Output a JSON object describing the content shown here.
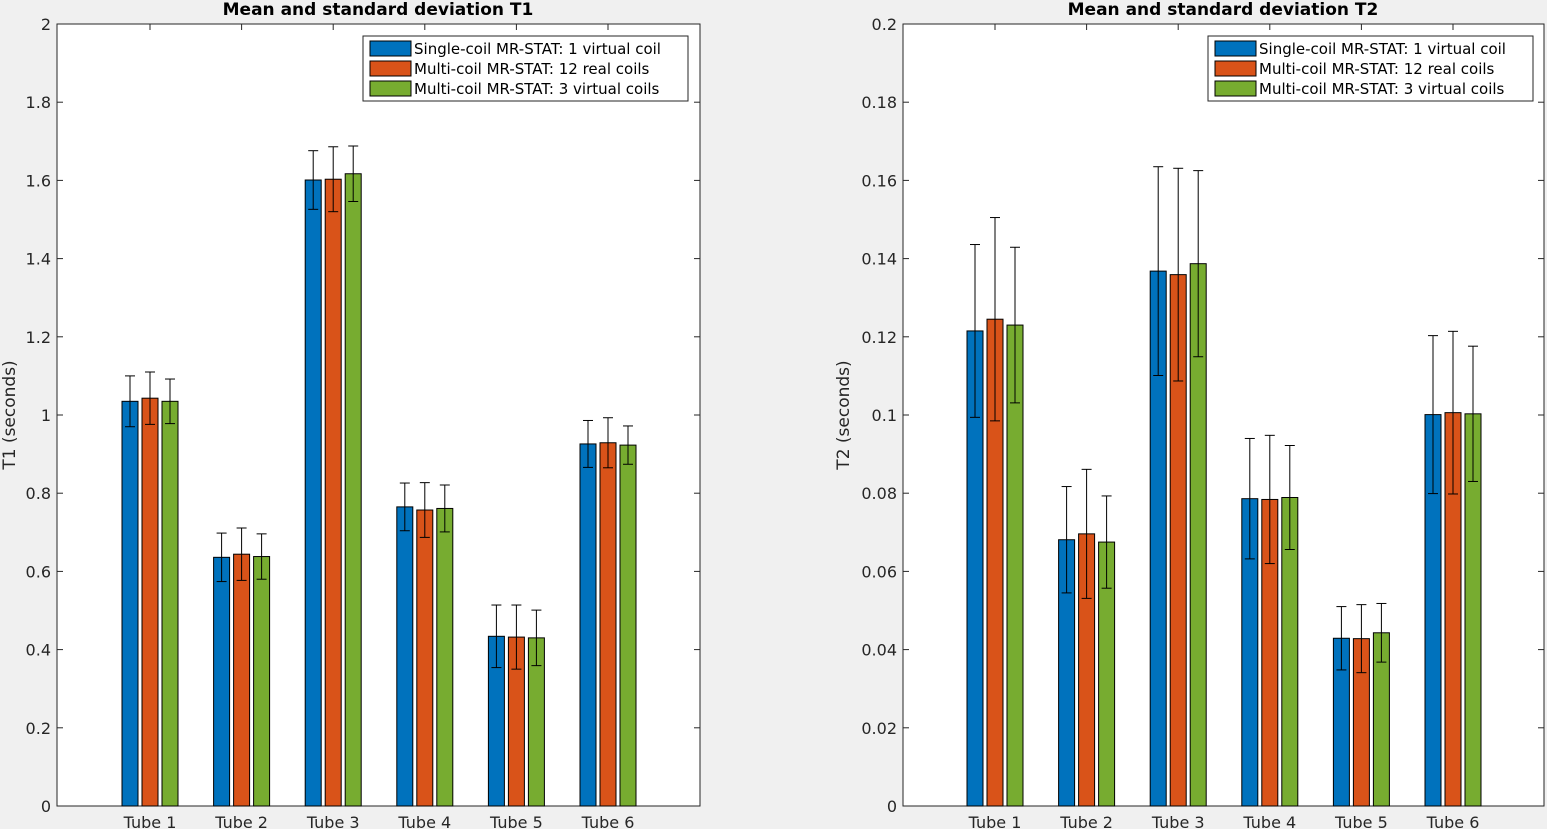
{
  "chart_data": [
    {
      "type": "bar",
      "title": "Mean and standard deviation T1",
      "xlabel": "",
      "ylabel": "T1 (seconds)",
      "ylim": [
        0,
        2
      ],
      "yticks": [
        0,
        0.2,
        0.4,
        0.6,
        0.8,
        1,
        1.2,
        1.4,
        1.6,
        1.8,
        2
      ],
      "ytick_labels": [
        "0",
        "0.2",
        "0.4",
        "0.6",
        "0.8",
        "1",
        "1.2",
        "1.4",
        "1.6",
        "1.8",
        "2"
      ],
      "categories": [
        "Tube 1",
        "Tube 2",
        "Tube 3",
        "Tube 4",
        "Tube 5",
        "Tube 6"
      ],
      "legend_position": "top-right",
      "grid": false,
      "series": [
        {
          "name": "Single-coil MR-STAT: 1 virtual coil",
          "color": "#0072bd",
          "values": [
            1.035,
            0.636,
            1.601,
            0.765,
            0.434,
            0.926
          ],
          "errors": [
            0.065,
            0.062,
            0.075,
            0.061,
            0.08,
            0.06
          ]
        },
        {
          "name": "Multi-coil MR-STAT: 12 real coils",
          "color": "#d95319",
          "values": [
            1.043,
            0.644,
            1.603,
            0.757,
            0.432,
            0.929
          ],
          "errors": [
            0.067,
            0.067,
            0.083,
            0.07,
            0.082,
            0.064
          ]
        },
        {
          "name": "Multi-coil MR-STAT: 3 virtual coils",
          "color": "#77ac30",
          "values": [
            1.035,
            0.638,
            1.617,
            0.761,
            0.43,
            0.923
          ],
          "errors": [
            0.057,
            0.058,
            0.071,
            0.06,
            0.071,
            0.049
          ]
        }
      ]
    },
    {
      "type": "bar",
      "title": "Mean and standard deviation T2",
      "xlabel": "",
      "ylabel": "T2 (seconds)",
      "ylim": [
        0,
        0.2
      ],
      "yticks": [
        0,
        0.02,
        0.04,
        0.06,
        0.08,
        0.1,
        0.12,
        0.14,
        0.16,
        0.18,
        0.2
      ],
      "ytick_labels": [
        "0",
        "0.02",
        "0.04",
        "0.06",
        "0.08",
        "0.1",
        "0.12",
        "0.14",
        "0.16",
        "0.18",
        "0.2"
      ],
      "categories": [
        "Tube 1",
        "Tube 2",
        "Tube 3",
        "Tube 4",
        "Tube 5",
        "Tube 6"
      ],
      "legend_position": "top-right",
      "grid": false,
      "series": [
        {
          "name": "Single-coil MR-STAT: 1 virtual coil",
          "color": "#0072bd",
          "values": [
            0.1215,
            0.0681,
            0.1368,
            0.0786,
            0.0429,
            0.1001
          ],
          "errors": [
            0.0221,
            0.0136,
            0.0267,
            0.0154,
            0.0081,
            0.0202
          ]
        },
        {
          "name": "Multi-coil MR-STAT: 12 real coils",
          "color": "#d95319",
          "values": [
            0.1245,
            0.0696,
            0.1359,
            0.0784,
            0.0428,
            0.1006
          ],
          "errors": [
            0.026,
            0.0165,
            0.0272,
            0.0164,
            0.0087,
            0.0208
          ]
        },
        {
          "name": "Multi-coil MR-STAT: 3 virtual coils",
          "color": "#77ac30",
          "values": [
            0.123,
            0.0675,
            0.1387,
            0.0789,
            0.0443,
            0.1003
          ],
          "errors": [
            0.0199,
            0.0118,
            0.0238,
            0.0133,
            0.0075,
            0.0173
          ]
        }
      ]
    }
  ]
}
